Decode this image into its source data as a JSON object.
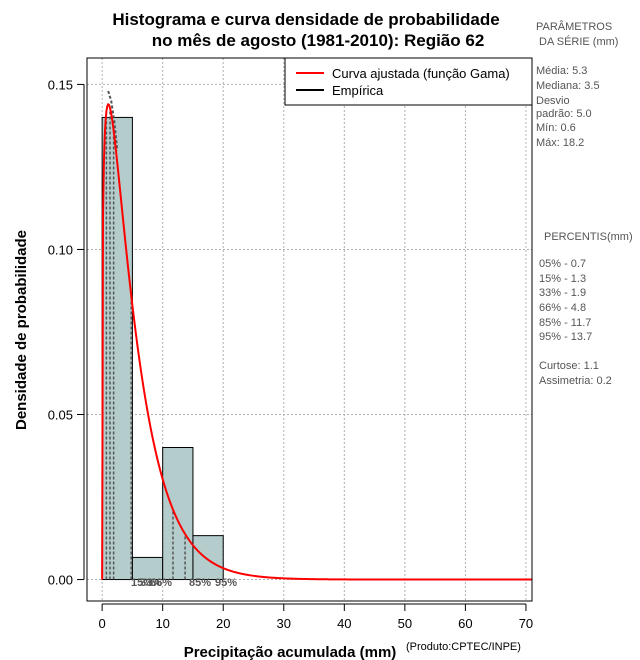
{
  "chart_data": {
    "type": "bar",
    "title_line1": "Histograma e curva densidade de probabilidade",
    "title_line2": "no mês de agosto (1981-2010): Região 62",
    "xlabel": "Precipitação acumulada (mm)",
    "ylabel": "Densidade de probabilidade",
    "credit": "(Produto:CPTEC/INPE)",
    "xlim": [
      -2.5,
      71
    ],
    "ylim": [
      -0.0065,
      0.158
    ],
    "x_ticks": [
      0,
      10,
      20,
      30,
      40,
      50,
      60,
      70
    ],
    "x_tick_labels": [
      "0",
      "10",
      "20",
      "30",
      "40",
      "50",
      "60",
      "70"
    ],
    "y_ticks": [
      0.0,
      0.05,
      0.1,
      0.15
    ],
    "y_tick_labels": [
      "0.00",
      "0.05",
      "0.10",
      "0.15"
    ],
    "grid": true,
    "histogram": {
      "bins": [
        {
          "x0": 0,
          "x1": 5,
          "density": 0.14
        },
        {
          "x0": 5,
          "x1": 10,
          "density": 0.0067
        },
        {
          "x0": 10,
          "x1": 15,
          "density": 0.04
        },
        {
          "x0": 15,
          "x1": 20,
          "density": 0.0133
        }
      ],
      "fill": "#b4cccc",
      "stroke": "#000000"
    },
    "gamma_fit": {
      "name": "Curva ajustada (função Gama)",
      "shape": 1.24,
      "scale": 4.27,
      "x_range": [
        0,
        71
      ],
      "color": "#ff0000"
    },
    "empirical": {
      "name": "Empírica",
      "color": "#000000",
      "points": [
        [
          1.0,
          0.148
        ],
        [
          1.5,
          0.145
        ],
        [
          2.0,
          0.139
        ],
        [
          2.5,
          0.13
        ]
      ]
    },
    "legend_position": "top-right",
    "percentiles": [
      {
        "label": "05%",
        "value": 0.7
      },
      {
        "label": "15%",
        "value": 1.3
      },
      {
        "label": "33%",
        "value": 1.9
      },
      {
        "label": "66%",
        "value": 4.8
      },
      {
        "label": "85%",
        "value": 11.7
      },
      {
        "label": "95%",
        "value": 13.7
      }
    ],
    "percentile_marker_labels": [
      "15%",
      "33%",
      "66%",
      "85%",
      "95%"
    ],
    "percentile_marker_color": "#555555"
  },
  "side_panel": {
    "params_title_1": "PARÂMETROS",
    "params_title_2": "DA SÉRIE (mm)",
    "media": "Média:  5.3",
    "mediana": "Mediana:  3.5",
    "desvio_1": "Desvio",
    "desvio_2": "padrão:  5.0",
    "min": "Mín:  0.6",
    "max": "Máx:  18.2",
    "percentis_title": "PERCENTIS(mm)",
    "p05": "05% -  0.7",
    "p15": "15% -  1.3",
    "p33": "33% -  1.9",
    "p66": "66% -  4.8",
    "p85": "85% -  11.7",
    "p95": "95% -  13.7",
    "curtose": "Curtose:  1.1",
    "assimetria": "Assimetria:  0.2"
  }
}
